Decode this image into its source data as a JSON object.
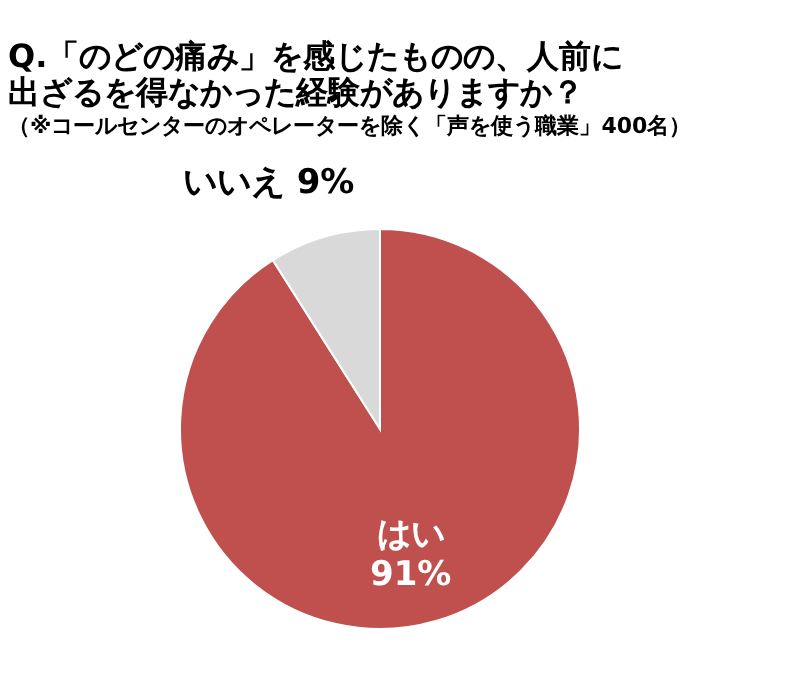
{
  "chart_data": {
    "type": "pie",
    "title": "Q.「のどの痛み」を感じたものの、人前に出ざるを得なかった経験がありますか？",
    "subtitle": "（※コールセンターのオペレーターを除く「声を使う職業」400名）",
    "categories": [
      "はい",
      "いいえ"
    ],
    "values": [
      91,
      9
    ],
    "colors": [
      "#c0504d",
      "#d9d9d9"
    ],
    "value_labels": [
      "91%",
      "9%"
    ]
  }
}
